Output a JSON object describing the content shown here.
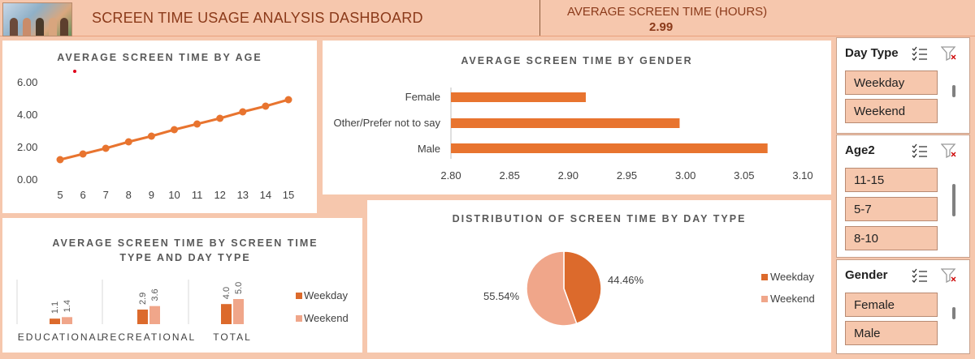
{
  "header": {
    "title": "SCREEN TIME USAGE ANALYSIS DASHBOARD",
    "avg_label": "AVERAGE SCREEN TIME (HOURS)",
    "avg_value": "2.99"
  },
  "colors": {
    "dark": "#dc6a2c",
    "light": "#f0a68a",
    "lineColor": "#e8742f",
    "background": "#f6c7ad"
  },
  "slicers": {
    "day_type": {
      "title": "Day Type",
      "items": [
        "Weekday",
        "Weekend"
      ]
    },
    "age": {
      "title": "Age2",
      "items": [
        "11-15",
        "5-7",
        "8-10"
      ]
    },
    "gender": {
      "title": "Gender",
      "items": [
        "Female",
        "Male"
      ]
    }
  },
  "chart_data": [
    {
      "type": "line",
      "title": "AVERAGE SCREEN TIME BY AGE",
      "x": [
        5,
        6,
        7,
        8,
        9,
        10,
        11,
        12,
        13,
        14,
        15
      ],
      "values": [
        1.15,
        1.5,
        1.85,
        2.25,
        2.6,
        3.0,
        3.35,
        3.7,
        4.1,
        4.45,
        4.85
      ],
      "x_tick_labels": [
        "5",
        "6",
        "7",
        "8",
        "9",
        "10",
        "11",
        "12",
        "13",
        "14",
        "15"
      ],
      "y_tick_labels": [
        "0.00",
        "2.00",
        "4.00",
        "6.00"
      ],
      "ylim": [
        0,
        6
      ],
      "grid": false
    },
    {
      "type": "bar",
      "orientation": "horizontal",
      "title": "AVERAGE SCREEN TIME BY GENDER",
      "categories": [
        "Female",
        "Other/Prefer not to say",
        "Male"
      ],
      "values": [
        2.915,
        2.995,
        3.07
      ],
      "x_tick_labels": [
        "2.80",
        "2.85",
        "2.90",
        "2.95",
        "3.00",
        "3.05",
        "3.10"
      ],
      "xlim": [
        2.8,
        3.1
      ]
    },
    {
      "type": "bar",
      "title": "AVERAGE SCREEN TIME BY SCREEN TIME TYPE AND DAY TYPE",
      "categories": [
        "EDUCATIONAL",
        "RECREATIONAL",
        "TOTAL"
      ],
      "series": [
        {
          "name": "Weekday",
          "values": [
            1.1,
            2.9,
            4.0
          ],
          "labels": [
            "1.1",
            "2.9",
            "4.0"
          ]
        },
        {
          "name": "Weekend",
          "values": [
            1.4,
            3.6,
            5.0
          ],
          "labels": [
            "1.4",
            "3.6",
            "5.0"
          ]
        }
      ],
      "legend": [
        "Weekday",
        "Weekend"
      ]
    },
    {
      "type": "pie",
      "title": "DISTRIBUTION OF SCREEN TIME BY DAY TYPE",
      "categories": [
        "Weekday",
        "Weekend"
      ],
      "values": [
        44.46,
        55.54
      ],
      "labels": [
        "44.46%",
        "55.54%"
      ],
      "legend": [
        "Weekday",
        "Weekend"
      ]
    }
  ]
}
